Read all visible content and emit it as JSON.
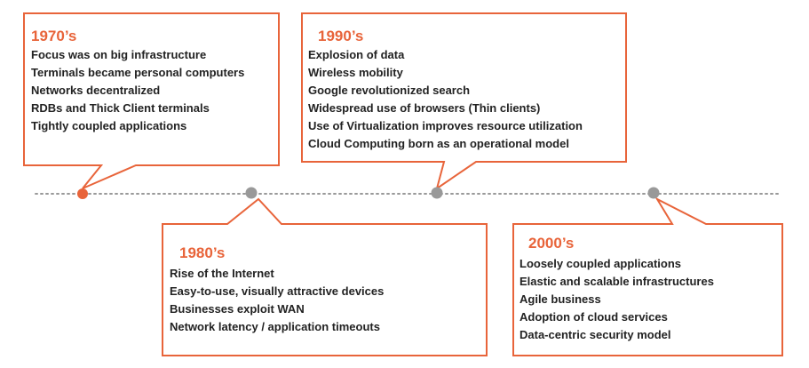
{
  "colors": {
    "accent": "#e8643a",
    "text": "#222222",
    "dot_inactive": "#999999",
    "dot_active": "#e8643a",
    "line": "#999999"
  },
  "eras": [
    {
      "title": "1970’s",
      "items": [
        "Focus was on big infrastructure",
        "Terminals became personal computers",
        "Networks decentralized",
        "RDBs and Thick Client terminals",
        "Tightly coupled applications"
      ]
    },
    {
      "title": "1980’s",
      "items": [
        "Rise of the Internet",
        "Easy-to-use, visually attractive devices",
        "Businesses exploit WAN",
        "Network latency / application timeouts"
      ]
    },
    {
      "title": "1990’s",
      "items": [
        "Explosion of data",
        "Wireless mobility",
        "Google revolutionized search",
        "Widespread use of browsers (Thin clients)",
        "Use of Virtualization improves resource utilization",
        "Cloud Computing born as an operational model"
      ]
    },
    {
      "title": "2000’s",
      "items": [
        "Loosely coupled applications",
        "Elastic and scalable infrastructures",
        "Agile business",
        "Adoption of cloud services",
        "Data-centric security model"
      ]
    }
  ]
}
